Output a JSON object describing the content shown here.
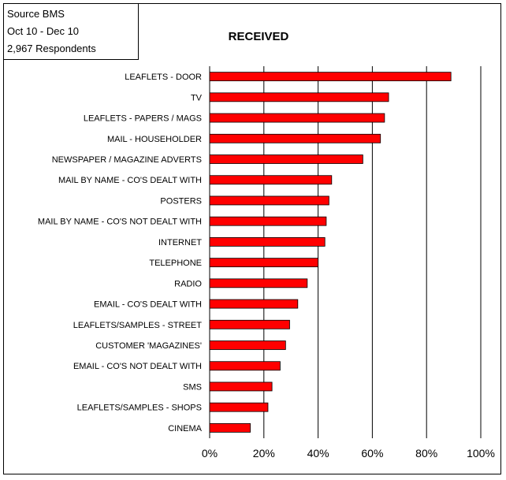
{
  "source_box": {
    "line1": "Source BMS",
    "line2": "Oct 10 - Dec 10",
    "line3": "2,967 Respondents"
  },
  "colors": {
    "bar": "#ff0000",
    "bar_stroke": "#000000",
    "grid": "#000000"
  },
  "chart_data": {
    "type": "bar",
    "orientation": "horizontal",
    "title": "RECEIVED",
    "xlabel": "",
    "ylabel": "",
    "xlim": [
      0,
      100
    ],
    "x_ticks": [
      "0%",
      "20%",
      "40%",
      "60%",
      "80%",
      "100%"
    ],
    "grid": true,
    "categories": [
      "LEAFLETS - DOOR",
      "TV",
      "LEAFLETS - PAPERS / MAGS",
      "MAIL - HOUSEHOLDER",
      "NEWSPAPER / MAGAZINE ADVERTS",
      "MAIL BY NAME - CO'S DEALT WITH",
      "POSTERS",
      "MAIL BY NAME - CO'S NOT DEALT WITH",
      "INTERNET",
      "TELEPHONE",
      "RADIO",
      "EMAIL - CO'S DEALT WITH",
      "LEAFLETS/SAMPLES - STREET",
      "CUSTOMER 'MAGAZINES'",
      "EMAIL - CO'S NOT DEALT WITH",
      "SMS",
      "LEAFLETS/SAMPLES - SHOPS",
      "CINEMA"
    ],
    "values": [
      89,
      66,
      64.5,
      63,
      56.5,
      45,
      44,
      43,
      42.5,
      40,
      36,
      32.5,
      29.5,
      28,
      26,
      23,
      21.5,
      15
    ]
  }
}
